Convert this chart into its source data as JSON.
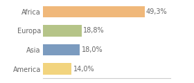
{
  "categories": [
    "America",
    "Asia",
    "Europa",
    "Africa"
  ],
  "values": [
    14.0,
    18.0,
    18.8,
    49.3
  ],
  "labels": [
    "14,0%",
    "18,0%",
    "18,8%",
    "49,3%"
  ],
  "bar_colors": [
    "#f2d47e",
    "#7b9bbf",
    "#b5c488",
    "#f0b87a"
  ],
  "background_color": "#ffffff",
  "xlim": [
    0,
    62
  ],
  "label_fontsize": 7,
  "tick_fontsize": 7,
  "bar_height": 0.6,
  "label_color": "#666666",
  "tick_color": "#666666",
  "spine_color": "#cccccc"
}
